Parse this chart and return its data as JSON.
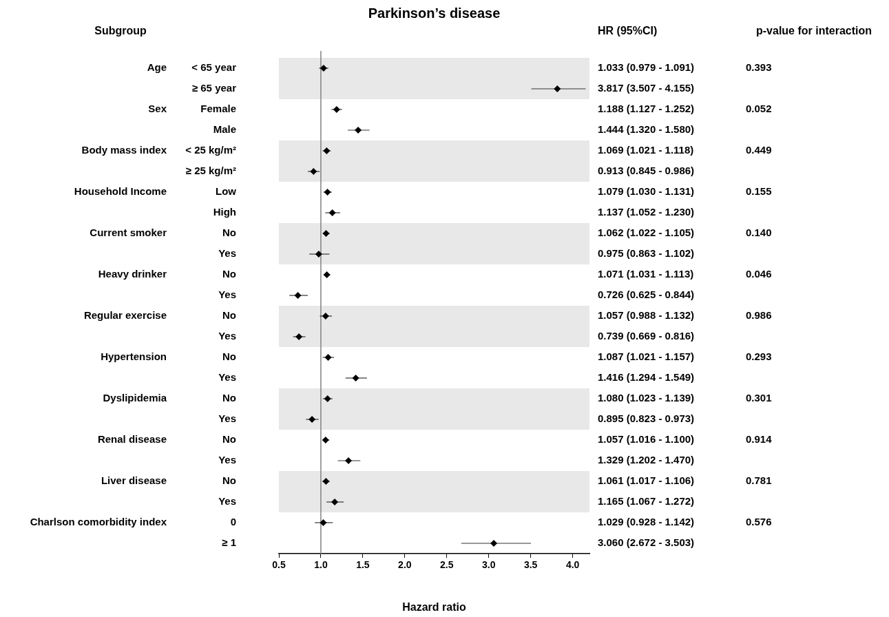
{
  "chart_data": {
    "type": "scatter",
    "title": "Parkinson’s disease",
    "ylabel": "Subgroup",
    "xlabel": "Hazard ratio",
    "orientation": "horizontal",
    "categories": [
      "< 65 year",
      "≥ 65 year",
      "Female",
      "Male",
      "< 25 kg/m²",
      "≥ 25 kg/m²",
      "Low",
      "High",
      "No",
      "Yes",
      "No",
      "Yes",
      "No",
      "Yes",
      "No",
      "Yes",
      "No",
      "Yes",
      "No",
      "Yes",
      "No",
      "Yes",
      "0",
      "≥ 1"
    ],
    "y2_categories": [
      "Age",
      null,
      "Sex",
      null,
      "Body mass index",
      null,
      "Household Income",
      null,
      "Current smoker",
      null,
      "Heavy drinker",
      null,
      "Regular exercise",
      null,
      "Hypertension",
      null,
      "Dyslipidemia",
      null,
      "Renal disease",
      null,
      "Liver disease",
      null,
      "Charlson comorbidity index",
      null
    ],
    "values": [
      1.033,
      3.817,
      1.188,
      1.444,
      1.069,
      0.913,
      1.079,
      1.137,
      1.062,
      0.975,
      1.071,
      0.726,
      1.057,
      0.739,
      1.087,
      1.416,
      1.08,
      0.895,
      1.057,
      1.329,
      1.061,
      1.165,
      1.029,
      3.06
    ],
    "errors": [
      [
        0.979,
        1.091
      ],
      [
        3.507,
        4.155
      ],
      [
        1.127,
        1.252
      ],
      [
        1.32,
        1.58
      ],
      [
        1.021,
        1.118
      ],
      [
        0.845,
        0.986
      ],
      [
        1.03,
        1.131
      ],
      [
        1.052,
        1.23
      ],
      [
        1.022,
        1.105
      ],
      [
        0.863,
        1.102
      ],
      [
        1.031,
        1.113
      ],
      [
        0.625,
        0.844
      ],
      [
        0.988,
        1.132
      ],
      [
        0.669,
        0.816
      ],
      [
        1.021,
        1.157
      ],
      [
        1.294,
        1.549
      ],
      [
        1.023,
        1.139
      ],
      [
        0.823,
        0.973
      ],
      [
        1.016,
        1.1
      ],
      [
        1.202,
        1.47
      ],
      [
        1.017,
        1.106
      ],
      [
        1.067,
        1.272
      ],
      [
        0.928,
        1.142
      ],
      [
        2.672,
        3.503
      ]
    ],
    "value_labels": [
      "1.033 (0.979 - 1.091)",
      "3.817 (3.507 - 4.155)",
      "1.188 (1.127 - 1.252)",
      "1.444 (1.320 - 1.580)",
      "1.069 (1.021 - 1.118)",
      "0.913 (0.845 - 0.986)",
      "1.079 (1.030 - 1.131)",
      "1.137 (1.052 - 1.230)",
      "1.062 (1.022 - 1.105)",
      "0.975 (0.863 - 1.102)",
      "1.071 (1.031 - 1.113)",
      "0.726 (0.625 - 0.844)",
      "1.057 (0.988 - 1.132)",
      "0.739 (0.669 - 0.816)",
      "1.087 (1.021 - 1.157)",
      "1.416 (1.294 - 1.549)",
      "1.080 (1.023 - 1.139)",
      "0.895 (0.823 - 0.973)",
      "1.057 (1.016 - 1.100)",
      "1.329 (1.202 - 1.470)",
      "1.061 (1.017 - 1.106)",
      "1.165 (1.067 - 1.272)",
      "1.029 (0.928 - 1.142)",
      "3.060 (2.672 - 3.503)"
    ],
    "annotations": [
      "HR (95%CI)",
      "p-value for interaction",
      "0.393",
      "0.052",
      "0.449",
      "0.155",
      "0.140",
      "0.046",
      "0.986",
      "0.293",
      "0.301",
      "0.914",
      "0.781",
      "0.576"
    ],
    "color": "#000000",
    "marker": "diamond",
    "grid": false,
    "legend": false,
    "xlim": [
      0.5,
      4.2
    ],
    "xticks": [
      0.5,
      {
        "value": 1,
        "label": "1.0"
      },
      1.5,
      {
        "value": 2,
        "label": "2.0"
      },
      2.5,
      {
        "value": 3,
        "label": "3.0"
      },
      3.5,
      {
        "value": 4,
        "label": "4.0"
      }
    ],
    "ref_lines": [
      {
        "axis": "x",
        "value": 1,
        "color": "#808080"
      }
    ]
  }
}
